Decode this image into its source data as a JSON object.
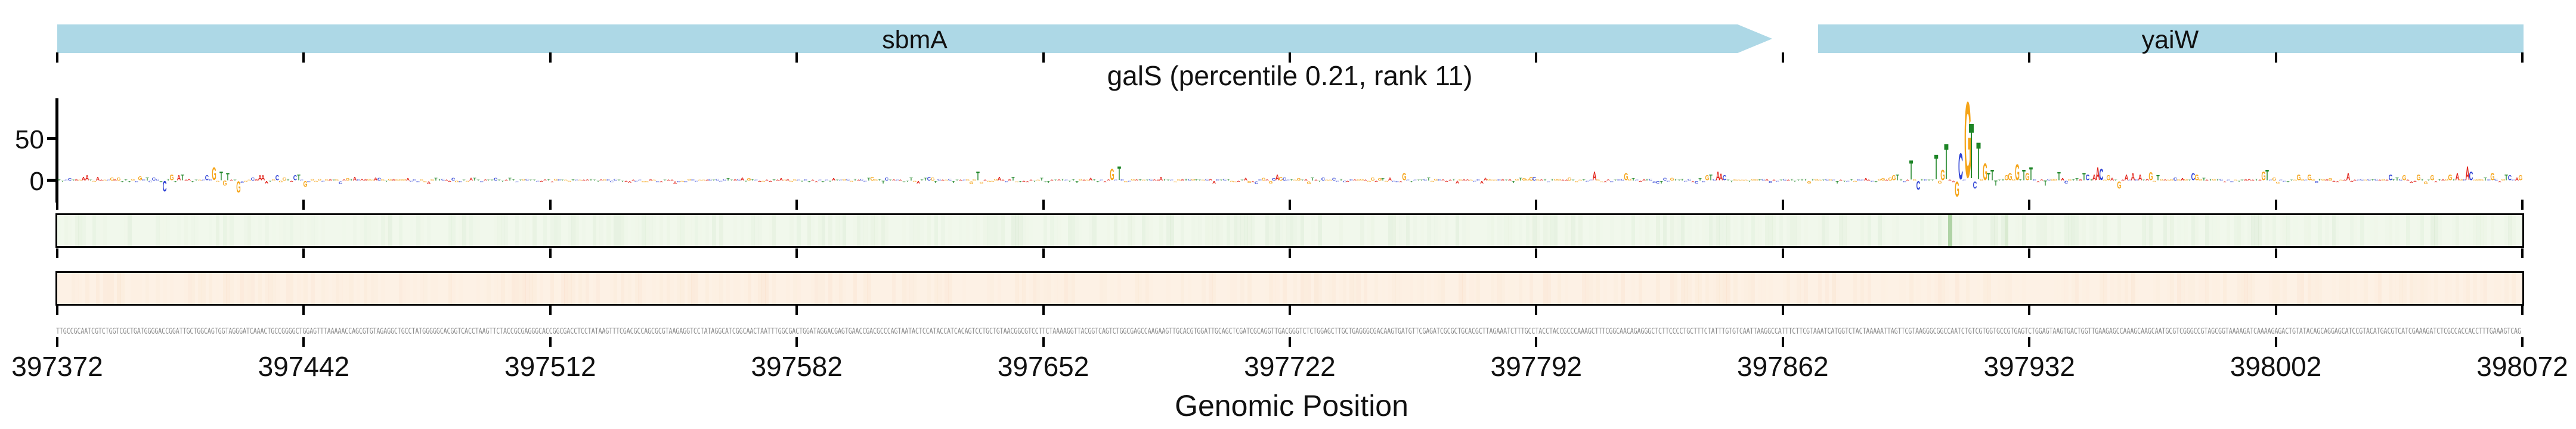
{
  "title": {
    "text": "galS (percentile 0.21, rank 11)"
  },
  "genes": [
    {
      "label": "sbmA",
      "start": 397372,
      "end": 397859,
      "strand": "+",
      "arrow_tip": true,
      "clipped_left": true
    },
    {
      "label": "yaiW",
      "start": 397872,
      "end": 398072,
      "strand": "+",
      "arrow_tip": false,
      "clipped_right": true
    }
  ],
  "gene_color": "#add8e6",
  "xaxis": {
    "label": "Genomic Position",
    "start": 397372,
    "end": 398072,
    "tick_interval": 70,
    "ticks": [
      397372,
      397442,
      397512,
      397582,
      397652,
      397722,
      397792,
      397862,
      397932,
      398002,
      398072
    ]
  },
  "yaxis": {
    "ticks": [
      {
        "value": "50"
      },
      {
        "value": "0"
      }
    ]
  },
  "base_colors": {
    "A": "#e2231a",
    "C": "#2b3fd4",
    "G": "#f5a418",
    "T": "#1d8526"
  },
  "chart_data": {
    "type": "sequence-logo-attribution",
    "title": "galS (percentile 0.21, rank 11)",
    "xlabel": "Genomic Position",
    "x_range": [
      397372,
      398072
    ],
    "y_ticks": [
      0,
      50
    ],
    "ylim": [
      -26,
      98
    ],
    "peak_position": 397914,
    "peak_value": 95,
    "features": [
      [
        397380,
        "A",
        6
      ],
      [
        397387,
        "G",
        4
      ],
      [
        397389,
        "G",
        4
      ],
      [
        397395,
        "G",
        5
      ],
      [
        397397,
        "T",
        4
      ],
      [
        397399,
        "C",
        4
      ],
      [
        397402,
        "C",
        -13
      ],
      [
        397404,
        "G",
        7
      ],
      [
        397406,
        "A",
        6
      ],
      [
        397407,
        "T",
        7
      ],
      [
        397414,
        "C",
        6
      ],
      [
        397416,
        "G",
        16
      ],
      [
        397418,
        "T",
        11
      ],
      [
        397419,
        "G",
        -6
      ],
      [
        397420,
        "T",
        9
      ],
      [
        397423,
        "G",
        -14
      ],
      [
        397427,
        "C",
        4
      ],
      [
        397429,
        "A",
        6
      ],
      [
        397430,
        "A",
        6
      ],
      [
        397434,
        "C",
        6
      ],
      [
        397436,
        "G",
        4
      ],
      [
        397439,
        "C",
        6
      ],
      [
        397440,
        "T",
        7
      ],
      [
        397442,
        "G",
        -7
      ],
      [
        397633,
        "T",
        11
      ],
      [
        397671,
        "G",
        14
      ],
      [
        397673,
        "T",
        17
      ],
      [
        397718,
        "A",
        7
      ],
      [
        397754,
        "G",
        9
      ],
      [
        397808,
        "A",
        11
      ],
      [
        397817,
        "G",
        9
      ],
      [
        397840,
        "G",
        6
      ],
      [
        397841,
        "T",
        7
      ],
      [
        397843,
        "A",
        11
      ],
      [
        397844,
        "A",
        8
      ],
      [
        397845,
        "C",
        6
      ],
      [
        397892,
        "G",
        4
      ],
      [
        397893,
        "G",
        6
      ],
      [
        397894,
        "T",
        7
      ],
      [
        397898,
        "T",
        24
      ],
      [
        397900,
        "C",
        -11
      ],
      [
        397905,
        "T",
        31
      ],
      [
        397907,
        "G",
        13
      ],
      [
        397908,
        "T",
        44
      ],
      [
        397911,
        "G",
        -19
      ],
      [
        397912,
        "C",
        33
      ],
      [
        397914,
        "G",
        95
      ],
      [
        397915,
        "T",
        69
      ],
      [
        397916,
        "C",
        -9
      ],
      [
        397917,
        "T",
        46
      ],
      [
        397919,
        "G",
        21
      ],
      [
        397920,
        "T",
        9
      ],
      [
        397921,
        "T",
        13
      ],
      [
        397922,
        "T",
        -6
      ],
      [
        397925,
        "G",
        6
      ],
      [
        397926,
        "G",
        9
      ],
      [
        397928,
        "G",
        20
      ],
      [
        397930,
        "T",
        13
      ],
      [
        397931,
        "G",
        9
      ],
      [
        397932,
        "T",
        16
      ],
      [
        397936,
        "T",
        -6
      ],
      [
        397940,
        "T",
        10
      ],
      [
        397947,
        "T",
        9
      ],
      [
        397948,
        "C",
        7
      ],
      [
        397950,
        "A",
        7
      ],
      [
        397951,
        "A",
        16
      ],
      [
        397952,
        "C",
        14
      ],
      [
        397954,
        "G",
        6
      ],
      [
        397957,
        "G",
        -9
      ],
      [
        397959,
        "A",
        7
      ],
      [
        397961,
        "A",
        9
      ],
      [
        397963,
        "A",
        7
      ],
      [
        397966,
        "G",
        10
      ],
      [
        397968,
        "T",
        6
      ],
      [
        397978,
        "C",
        9
      ],
      [
        397979,
        "G",
        7
      ],
      [
        397998,
        "G",
        11
      ],
      [
        397999,
        "T",
        13
      ],
      [
        398008,
        "G",
        7
      ],
      [
        398011,
        "G",
        7
      ],
      [
        398022,
        "A",
        9
      ],
      [
        398034,
        "C",
        7
      ],
      [
        398036,
        "T",
        4
      ],
      [
        398038,
        "G",
        6
      ],
      [
        398042,
        "G",
        7
      ],
      [
        398046,
        "G",
        6
      ],
      [
        398051,
        "G",
        7
      ],
      [
        398053,
        "A",
        9
      ],
      [
        398056,
        "A",
        17
      ],
      [
        398057,
        "C",
        11
      ],
      [
        398061,
        "T",
        4
      ],
      [
        398063,
        "G",
        9
      ],
      [
        398067,
        "T",
        7
      ],
      [
        398068,
        "C",
        6
      ],
      [
        398070,
        "A",
        4
      ],
      [
        398071,
        "G",
        6
      ]
    ],
    "noise_amplitude_units": 4
  },
  "tracks": [
    {
      "name": "track-green",
      "fill": "#f1f8ec",
      "border": "#000000",
      "tint": "#4e9a3c",
      "highlights": [
        {
          "p": 397909,
          "a": 0.4
        },
        {
          "p": 397925,
          "a": 0.15
        }
      ]
    },
    {
      "name": "track-orange",
      "fill": "#fdf1e5",
      "border": "#000000",
      "tint": "#e0862e",
      "highlights": []
    }
  ],
  "sequence": {
    "length": 700,
    "color": "#8a8a8a",
    "start_fragment": "TTGCCGCAATCGTCTGGTCGCTGATGGGGACCGGATTGCTGGCAGTGGTAGGGATCAAACTGCCGGGGCTGGAGTTTAAAAACCAGCGTGTAGAGGCTGCCTA",
    "end_fragment": "GAAAGATCTCGCCACCACCTTTGAAAGTCAG"
  }
}
